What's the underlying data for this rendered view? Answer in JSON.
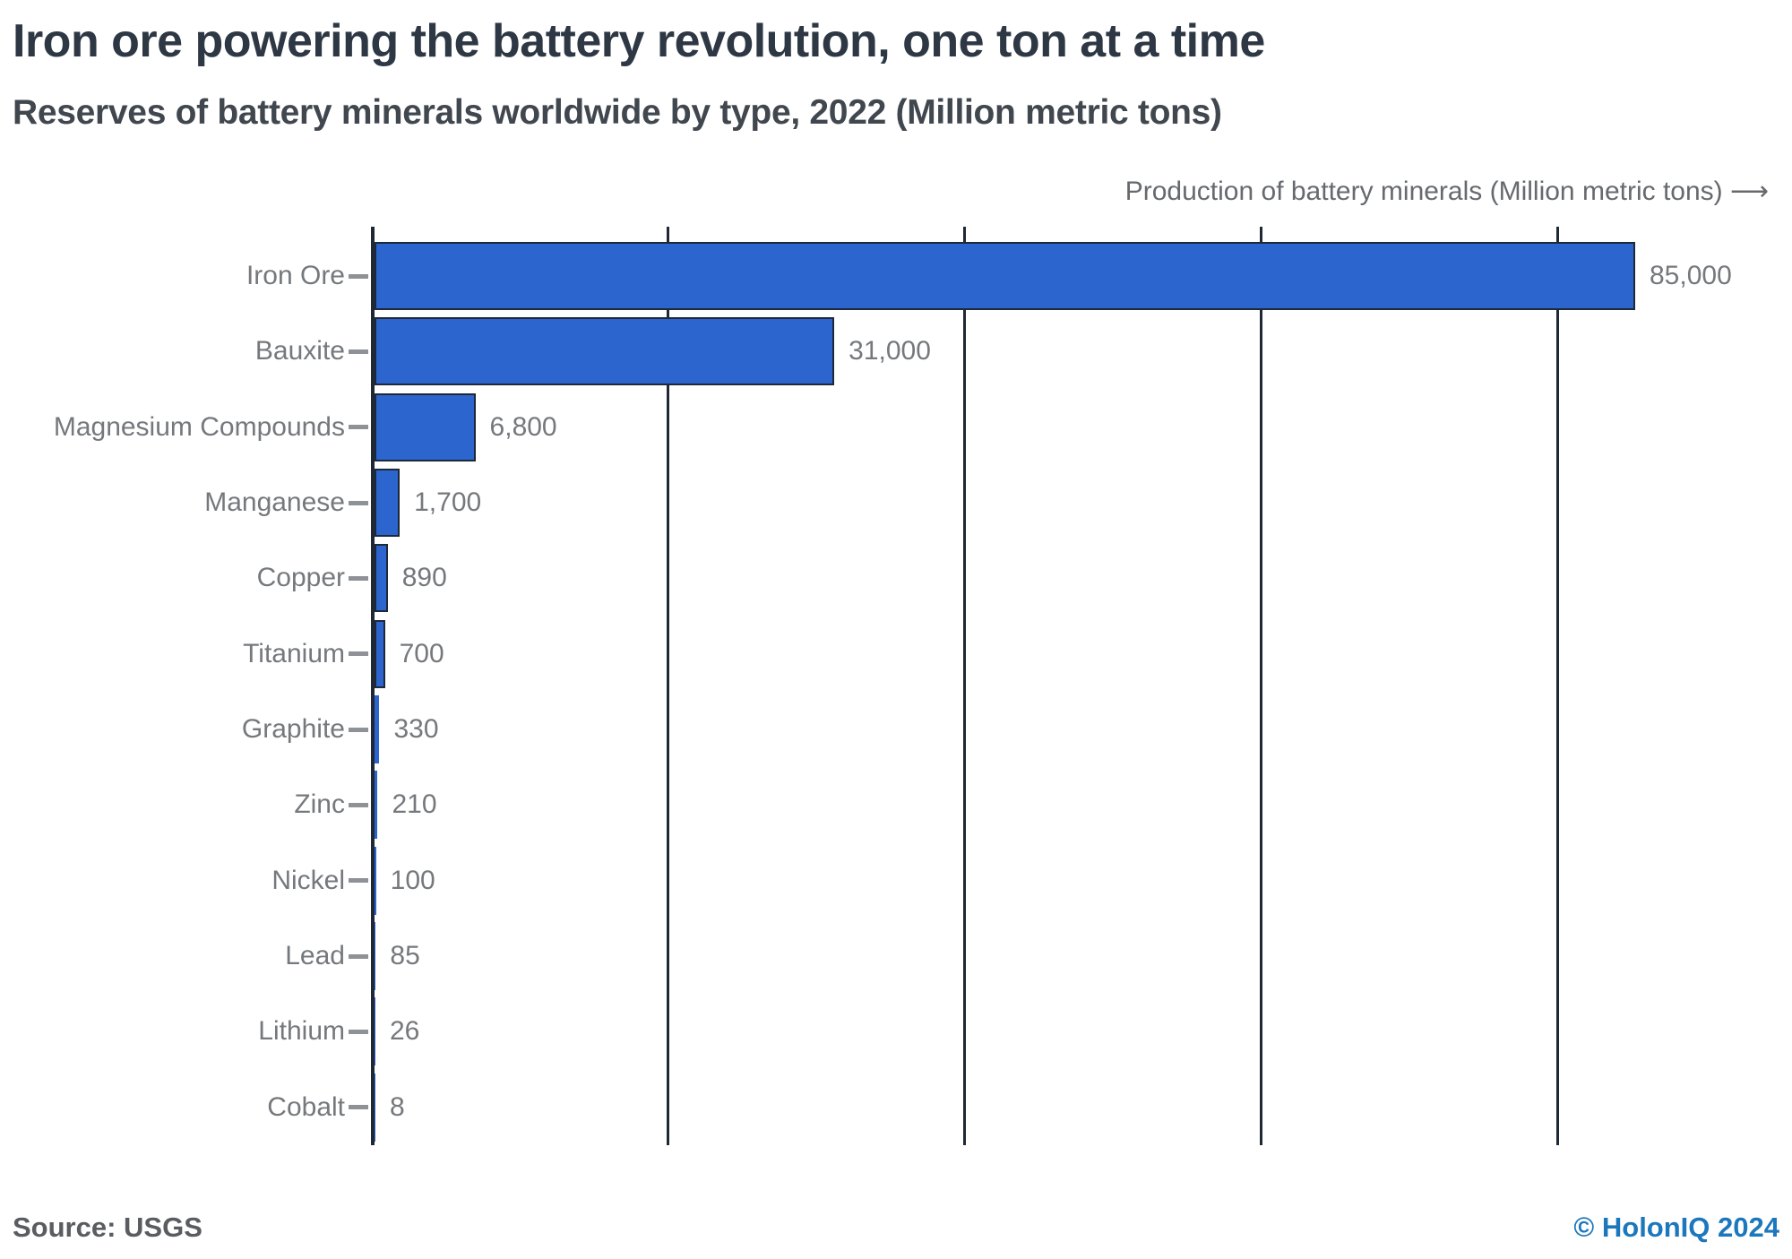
{
  "header": {
    "title": "Iron ore powering the battery revolution, one ton at a time",
    "subtitle": "Reserves of battery minerals worldwide by type, 2022 (Million metric tons)"
  },
  "chart_data": {
    "type": "bar",
    "orientation": "horizontal",
    "title": "Iron ore powering the battery revolution, one ton at a time",
    "subtitle": "Reserves of battery minerals worldwide by type, 2022 (Million metric tons)",
    "xlabel": "Production of battery minerals (Million metric tons) ⟶",
    "ylabel": "",
    "categories": [
      "Iron Ore",
      "Bauxite",
      "Magnesium Compounds",
      "Manganese",
      "Copper",
      "Titanium",
      "Graphite",
      "Zinc",
      "Nickel",
      "Lead",
      "Lithium",
      "Cobalt"
    ],
    "values": [
      85000,
      31000,
      6800,
      1700,
      890,
      700,
      330,
      210,
      100,
      85,
      26,
      8
    ],
    "value_labels": [
      "85,000",
      "31,000",
      "6,800",
      "1,700",
      "890",
      "700",
      "330",
      "210",
      "100",
      "85",
      "26",
      "8"
    ],
    "xlim": [
      0,
      95000
    ],
    "grid_values": [
      0,
      20000,
      40000,
      60000,
      80000
    ],
    "grid": true,
    "legend": false,
    "colors": {
      "bar_fill": "#2b65cd",
      "bar_border": "#1d2939",
      "grid_line": "#1f2835",
      "axis_line": "#1f2835",
      "tick_dash": "#8e9296",
      "category_label": "#75787c",
      "value_label": "#75787c",
      "title": "#2e3844",
      "subtitle": "#41474f",
      "axis_title": "#66696e"
    }
  },
  "footer": {
    "source": "Source: USGS",
    "copyright": "© HolonIQ 2024",
    "source_color": "#595c60",
    "copyright_color": "#1c77bd"
  }
}
